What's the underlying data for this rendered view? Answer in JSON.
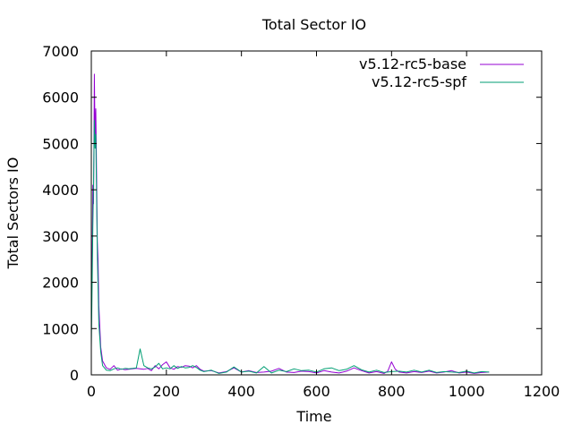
{
  "chart_data": {
    "type": "line",
    "title": "Total Sector IO",
    "xlabel": "Time",
    "ylabel": "Total Sectors IO",
    "xlim": [
      0,
      1200
    ],
    "ylim": [
      0,
      7000
    ],
    "xticks": [
      0,
      200,
      400,
      600,
      800,
      1000,
      1200
    ],
    "yticks": [
      0,
      1000,
      2000,
      3000,
      4000,
      5000,
      6000,
      7000
    ],
    "grid": false,
    "legend_position": "top-right",
    "series": [
      {
        "name": "v5.12-rc5-base",
        "color": "#9400d3",
        "x": [
          0,
          2,
          4,
          6,
          8,
          10,
          12,
          14,
          16,
          18,
          20,
          25,
          30,
          40,
          50,
          60,
          70,
          80,
          90,
          100,
          110,
          120,
          130,
          140,
          150,
          160,
          170,
          180,
          190,
          200,
          210,
          220,
          230,
          240,
          250,
          260,
          270,
          280,
          290,
          300,
          320,
          340,
          360,
          380,
          400,
          420,
          440,
          460,
          480,
          500,
          520,
          540,
          560,
          580,
          600,
          620,
          640,
          660,
          680,
          700,
          720,
          740,
          760,
          780,
          790,
          800,
          810,
          820,
          840,
          860,
          880,
          900,
          920,
          940,
          960,
          980,
          1000,
          1020,
          1040,
          1060
        ],
        "y": [
          2300,
          2100,
          4100,
          3700,
          6500,
          5100,
          5750,
          4300,
          2900,
          2500,
          1500,
          600,
          300,
          150,
          120,
          200,
          100,
          130,
          110,
          120,
          130,
          140,
          130,
          120,
          140,
          90,
          200,
          130,
          220,
          280,
          150,
          120,
          180,
          160,
          200,
          190,
          150,
          200,
          120,
          80,
          90,
          40,
          70,
          150,
          60,
          90,
          50,
          60,
          80,
          140,
          60,
          50,
          80,
          70,
          40,
          90,
          60,
          40,
          80,
          150,
          90,
          40,
          70,
          30,
          80,
          280,
          120,
          60,
          40,
          70,
          50,
          80,
          40,
          60,
          90,
          40,
          60,
          30,
          50,
          60
        ]
      },
      {
        "name": "v5.12-rc5-spf",
        "color": "#009e73",
        "x": [
          0,
          2,
          4,
          6,
          8,
          10,
          12,
          14,
          16,
          18,
          20,
          25,
          30,
          40,
          50,
          60,
          70,
          80,
          90,
          100,
          110,
          120,
          130,
          140,
          150,
          160,
          170,
          180,
          190,
          200,
          210,
          220,
          230,
          240,
          250,
          260,
          270,
          280,
          290,
          300,
          320,
          340,
          360,
          380,
          400,
          420,
          440,
          460,
          480,
          500,
          520,
          540,
          560,
          580,
          600,
          620,
          640,
          660,
          680,
          700,
          720,
          740,
          760,
          780,
          800,
          820,
          840,
          860,
          880,
          900,
          920,
          940,
          960,
          980,
          1000,
          1020,
          1040,
          1060
        ],
        "y": [
          600,
          1800,
          3200,
          4100,
          5500,
          4900,
          5200,
          3800,
          2600,
          1900,
          1100,
          500,
          200,
          100,
          90,
          130,
          150,
          120,
          140,
          130,
          140,
          150,
          560,
          200,
          150,
          130,
          170,
          250,
          130,
          150,
          130,
          200,
          140,
          180,
          150,
          160,
          200,
          160,
          100,
          70,
          100,
          30,
          60,
          170,
          60,
          80,
          40,
          180,
          40,
          100,
          70,
          130,
          90,
          100,
          60,
          130,
          150,
          90,
          120,
          200,
          110,
          60,
          100,
          50,
          70,
          80,
          60,
          100,
          60,
          100,
          50,
          70,
          60,
          50,
          80,
          40,
          70,
          60
        ]
      }
    ]
  }
}
